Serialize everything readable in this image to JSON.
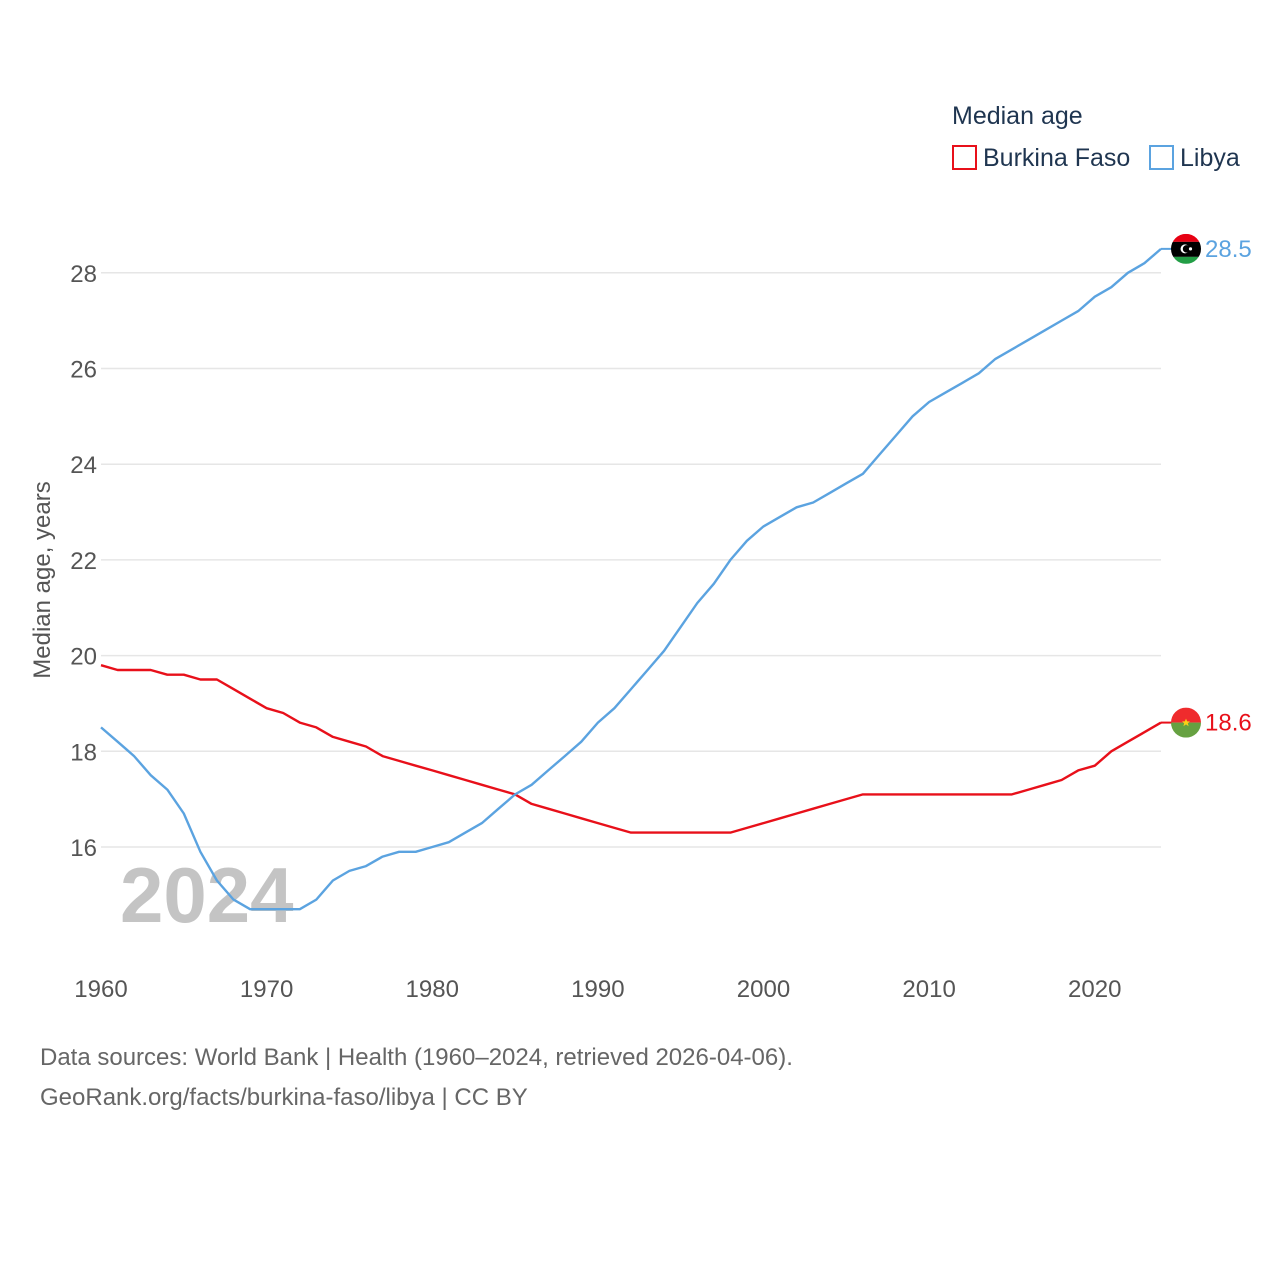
{
  "colors": {
    "burkina": "#e8101a",
    "libya": "#5ba3e0",
    "grid": "#e6e6e6",
    "tick": "#555555"
  },
  "icons": {
    "libya_flag": "libya-flag-icon",
    "burkina_flag": "burkina-flag-icon"
  },
  "chart_data": {
    "type": "line",
    "title": "Median age",
    "ylabel": "Median age, years",
    "xlabel": "",
    "xlim": [
      1960,
      2024
    ],
    "ylim": [
      14,
      29
    ],
    "yticks": [
      16,
      18,
      20,
      22,
      24,
      26,
      28
    ],
    "xticks": [
      1960,
      1970,
      1980,
      1990,
      2000,
      2010,
      2020
    ],
    "ytick_labels": [
      "16",
      "18",
      "20",
      "22",
      "24",
      "26",
      "28"
    ],
    "xtick_labels": [
      "1960",
      "1970",
      "1980",
      "1990",
      "2000",
      "2010",
      "2020"
    ],
    "current_year": "2024",
    "grid": true,
    "legend_position": "top-right",
    "x": [
      1960,
      1961,
      1962,
      1963,
      1964,
      1965,
      1966,
      1967,
      1968,
      1969,
      1970,
      1971,
      1972,
      1973,
      1974,
      1975,
      1976,
      1977,
      1978,
      1979,
      1980,
      1981,
      1982,
      1983,
      1984,
      1985,
      1986,
      1987,
      1988,
      1989,
      1990,
      1991,
      1992,
      1993,
      1994,
      1995,
      1996,
      1997,
      1998,
      1999,
      2000,
      2001,
      2002,
      2003,
      2004,
      2005,
      2006,
      2007,
      2008,
      2009,
      2010,
      2011,
      2012,
      2013,
      2014,
      2015,
      2016,
      2017,
      2018,
      2019,
      2020,
      2021,
      2022,
      2023,
      2024
    ],
    "series": [
      {
        "name": "Burkina Faso",
        "key": "burkina",
        "end_label": "18.6",
        "values": [
          19.8,
          19.7,
          19.7,
          19.7,
          19.6,
          19.6,
          19.5,
          19.5,
          19.3,
          19.1,
          18.9,
          18.8,
          18.6,
          18.5,
          18.3,
          18.2,
          18.1,
          17.9,
          17.8,
          17.7,
          17.6,
          17.5,
          17.4,
          17.3,
          17.2,
          17.1,
          16.9,
          16.8,
          16.7,
          16.6,
          16.5,
          16.4,
          16.3,
          16.3,
          16.3,
          16.3,
          16.3,
          16.3,
          16.3,
          16.4,
          16.5,
          16.6,
          16.7,
          16.8,
          16.9,
          17.0,
          17.1,
          17.1,
          17.1,
          17.1,
          17.1,
          17.1,
          17.1,
          17.1,
          17.1,
          17.1,
          17.2,
          17.3,
          17.4,
          17.6,
          17.7,
          18.0,
          18.2,
          18.4,
          18.6
        ]
      },
      {
        "name": "Libya",
        "key": "libya",
        "end_label": "28.5",
        "values": [
          18.5,
          18.2,
          17.9,
          17.5,
          17.2,
          16.7,
          15.9,
          15.3,
          14.9,
          14.7,
          14.7,
          14.7,
          14.7,
          14.9,
          15.3,
          15.5,
          15.6,
          15.8,
          15.9,
          15.9,
          16.0,
          16.1,
          16.3,
          16.5,
          16.8,
          17.1,
          17.3,
          17.6,
          17.9,
          18.2,
          18.6,
          18.9,
          19.3,
          19.7,
          20.1,
          20.6,
          21.1,
          21.5,
          22.0,
          22.4,
          22.7,
          22.9,
          23.1,
          23.2,
          23.4,
          23.6,
          23.8,
          24.2,
          24.6,
          25.0,
          25.3,
          25.5,
          25.7,
          25.9,
          26.2,
          26.4,
          26.6,
          26.8,
          27.0,
          27.2,
          27.5,
          27.7,
          28.0,
          28.2,
          28.5
        ]
      }
    ]
  },
  "source": {
    "line1": "Data sources: World Bank | Health (1960–2024, retrieved 2026-04-06).",
    "line2": "GeoRank.org/facts/burkina-faso/libya | CC BY"
  }
}
